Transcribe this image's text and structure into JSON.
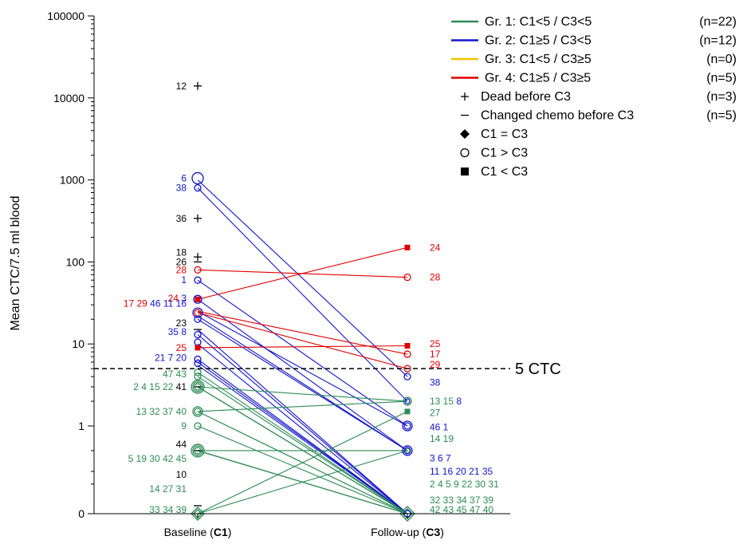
{
  "chart_data": {
    "type": "line",
    "ylabel": "Mean CTC/7.5 ml blood",
    "yscale": "log (0 at bottom)",
    "y_ticks": [
      "100000",
      "10000",
      "1000",
      "100",
      "10",
      "1",
      "0"
    ],
    "x_categories": [
      {
        "prefix": "Baseline (",
        "bold": "C1",
        "suffix": ")"
      },
      {
        "prefix": "Follow-up (",
        "bold": "C3",
        "suffix": ")"
      }
    ],
    "threshold": {
      "value": 5,
      "label": "5 CTC"
    },
    "colors": {
      "green": "#2e8b57",
      "blue": "#1414cc",
      "yellow": "#f2c200",
      "red": "#e00000",
      "black": "#000000"
    },
    "legend": [
      {
        "kind": "line",
        "color": "green",
        "label": "Gr. 1: C1<5 / C3<5",
        "count": "(n=22)"
      },
      {
        "kind": "line",
        "color": "blue",
        "label": "Gr. 2: C1≥5 / C3<5",
        "count": "(n=12)"
      },
      {
        "kind": "line",
        "color": "yellow",
        "label": "Gr. 3: C1<5 / C3≥5",
        "count": "(n=0)"
      },
      {
        "kind": "line",
        "color": "red",
        "label": "Gr. 4: C1≥5 / C3≥5",
        "count": "(n=5)"
      },
      {
        "kind": "plus",
        "label": "Dead before C3",
        "count": "(n=3)"
      },
      {
        "kind": "dash",
        "label": "Changed chemo before C3",
        "count": "(n=5)"
      },
      {
        "kind": "diamond",
        "label": "C1 = C3",
        "count": ""
      },
      {
        "kind": "circle",
        "label": "C1 > C3",
        "count": ""
      },
      {
        "kind": "square",
        "label": "C1 < C3",
        "count": ""
      }
    ],
    "segments": [
      {
        "color": "blue",
        "y1": 1000,
        "y2": 4
      },
      {
        "color": "blue",
        "y1": 800,
        "y2": 2
      },
      {
        "color": "blue",
        "y1": 60,
        "y2": 1
      },
      {
        "color": "blue",
        "y1": 35,
        "y2": 0.5
      },
      {
        "color": "blue",
        "y1": 25,
        "y2": 1
      },
      {
        "color": "blue",
        "y1": 22,
        "y2": 0.5
      },
      {
        "color": "blue",
        "y1": 20,
        "y2": 0.5
      },
      {
        "color": "blue",
        "y1": 15,
        "y2": 0
      },
      {
        "color": "blue",
        "y1": 13,
        "y2": 0
      },
      {
        "color": "blue",
        "y1": 10,
        "y2": 0
      },
      {
        "color": "blue",
        "y1": 6.5,
        "y2": 0
      },
      {
        "color": "blue",
        "y1": 6,
        "y2": 0
      },
      {
        "color": "blue",
        "y1": 5.5,
        "y2": 0
      },
      {
        "color": "red",
        "y1": 80,
        "y2": 65
      },
      {
        "color": "red",
        "y1": 35,
        "y2": 150
      },
      {
        "color": "red",
        "y1": 25,
        "y2": 7.5
      },
      {
        "color": "red",
        "y1": 24,
        "y2": 5
      },
      {
        "color": "red",
        "y1": 9,
        "y2": 9.5
      },
      {
        "color": "green",
        "y1": 4.5,
        "y2": 0
      },
      {
        "color": "green",
        "y1": 4,
        "y2": 0
      },
      {
        "color": "green",
        "y1": 3,
        "y2": 2
      },
      {
        "color": "green",
        "y1": 3,
        "y2": 0
      },
      {
        "color": "green",
        "y1": 3,
        "y2": 0
      },
      {
        "color": "green",
        "y1": 3,
        "y2": 0
      },
      {
        "color": "green",
        "y1": 1.5,
        "y2": 2
      },
      {
        "color": "green",
        "y1": 1.5,
        "y2": 0
      },
      {
        "color": "green",
        "y1": 1.5,
        "y2": 0
      },
      {
        "color": "green",
        "y1": 1,
        "y2": 0
      },
      {
        "color": "green",
        "y1": 0.5,
        "y2": 0.5
      },
      {
        "color": "green",
        "y1": 0.5,
        "y2": 0
      },
      {
        "color": "green",
        "y1": 0.5,
        "y2": 0
      },
      {
        "color": "green",
        "y1": 0.5,
        "y2": 0
      },
      {
        "color": "green",
        "y1": 0,
        "y2": 1.5
      },
      {
        "color": "green",
        "y1": 0,
        "y2": 0.5
      },
      {
        "color": "green",
        "y1": 0,
        "y2": 0
      }
    ],
    "markers": [
      {
        "side": "c1",
        "shape": "plus",
        "color": "black",
        "y": 14000
      },
      {
        "side": "c1",
        "shape": "plus",
        "color": "black",
        "y": 340
      },
      {
        "side": "c1",
        "shape": "plus",
        "color": "black",
        "y": 115
      },
      {
        "side": "c1",
        "shape": "dash",
        "color": "black",
        "y": 100
      },
      {
        "side": "c1",
        "shape": "dash",
        "color": "black",
        "y": 15
      },
      {
        "side": "c1",
        "shape": "dash",
        "color": "black",
        "y": 3
      },
      {
        "side": "c1",
        "shape": "dash",
        "color": "black",
        "y": 0.5
      },
      {
        "side": "c1",
        "shape": "dash",
        "color": "black",
        "y": 0.1
      },
      {
        "side": "c1",
        "shape": "circle",
        "color": "blue",
        "y": 1050,
        "r": 7
      },
      {
        "side": "c1",
        "shape": "circle",
        "color": "blue",
        "y": 800,
        "r": 4
      },
      {
        "side": "c1",
        "shape": "circle",
        "color": "red",
        "y": 80,
        "r": 4
      },
      {
        "side": "c1",
        "shape": "circle",
        "color": "blue",
        "y": 60,
        "r": 4
      },
      {
        "side": "c1",
        "shape": "square",
        "color": "red",
        "y": 35
      },
      {
        "side": "c1",
        "shape": "circle",
        "color": "blue",
        "y": 35,
        "r": 5
      },
      {
        "side": "c1",
        "shape": "circle",
        "color": "blue",
        "y": 24,
        "r": 6
      },
      {
        "side": "c1",
        "shape": "circle",
        "color": "red",
        "y": 24,
        "r": 4
      },
      {
        "side": "c1",
        "shape": "circle",
        "color": "blue",
        "y": 20,
        "r": 4
      },
      {
        "side": "c1",
        "shape": "circle",
        "color": "blue",
        "y": 13,
        "r": 4
      },
      {
        "side": "c1",
        "shape": "circle",
        "color": "blue",
        "y": 10.5,
        "r": 4
      },
      {
        "side": "c1",
        "shape": "square",
        "color": "red",
        "y": 9
      },
      {
        "side": "c1",
        "shape": "circle",
        "color": "blue",
        "y": 6.5,
        "r": 4
      },
      {
        "side": "c1",
        "shape": "circle",
        "color": "blue",
        "y": 5.8,
        "r": 4
      },
      {
        "side": "c1",
        "shape": "circle",
        "color": "green",
        "y": 4.5,
        "r": 4
      },
      {
        "side": "c1",
        "shape": "circle",
        "color": "green",
        "y": 4,
        "r": 4
      },
      {
        "side": "c1",
        "shape": "circle",
        "color": "green",
        "y": 3,
        "r": 4
      },
      {
        "side": "c1",
        "shape": "circle",
        "color": "green",
        "y": 3,
        "r": 6
      },
      {
        "side": "c1",
        "shape": "circle",
        "color": "green",
        "y": 3,
        "r": 8
      },
      {
        "side": "c1",
        "shape": "circle",
        "color": "green",
        "y": 1.5,
        "r": 4
      },
      {
        "side": "c1",
        "shape": "circle",
        "color": "green",
        "y": 1.5,
        "r": 6
      },
      {
        "side": "c1",
        "shape": "circle",
        "color": "green",
        "y": 1,
        "r": 4
      },
      {
        "side": "c1",
        "shape": "circle",
        "color": "green",
        "y": 0.5,
        "r": 4
      },
      {
        "side": "c1",
        "shape": "circle",
        "color": "green",
        "y": 0.5,
        "r": 6
      },
      {
        "side": "c1",
        "shape": "circle",
        "color": "green",
        "y": 0.5,
        "r": 8
      },
      {
        "side": "c1",
        "shape": "diamond",
        "color": "green",
        "y": 0,
        "r": 5
      },
      {
        "side": "c1",
        "shape": "diamond",
        "color": "green",
        "y": 0,
        "r": 8
      },
      {
        "side": "c3",
        "shape": "square",
        "color": "red",
        "y": 150
      },
      {
        "side": "c3",
        "shape": "circle",
        "color": "red",
        "y": 65,
        "r": 4
      },
      {
        "side": "c3",
        "shape": "square",
        "color": "red",
        "y": 9.5
      },
      {
        "side": "c3",
        "shape": "circle",
        "color": "red",
        "y": 7.5,
        "r": 4
      },
      {
        "side": "c3",
        "shape": "circle",
        "color": "red",
        "y": 5,
        "r": 4
      },
      {
        "side": "c3",
        "shape": "circle",
        "color": "blue",
        "y": 4,
        "r": 4
      },
      {
        "side": "c3",
        "shape": "circle",
        "color": "green",
        "y": 2,
        "r": 5
      },
      {
        "side": "c3",
        "shape": "circle",
        "color": "blue",
        "y": 2,
        "r": 3
      },
      {
        "side": "c3",
        "shape": "square",
        "color": "green",
        "y": 1.5
      },
      {
        "side": "c3",
        "shape": "circle",
        "color": "blue",
        "y": 1,
        "r": 4
      },
      {
        "side": "c3",
        "shape": "circle",
        "color": "blue",
        "y": 1,
        "r": 6
      },
      {
        "side": "c3",
        "shape": "circle",
        "color": "blue",
        "y": 0.5,
        "r": 4
      },
      {
        "side": "c3",
        "shape": "circle",
        "color": "blue",
        "y": 0.5,
        "r": 6
      },
      {
        "side": "c3",
        "shape": "circle",
        "color": "green",
        "y": 0.5,
        "r": 3
      },
      {
        "side": "c3",
        "shape": "diamond",
        "color": "green",
        "y": 0,
        "r": 6
      },
      {
        "side": "c3",
        "shape": "diamond",
        "color": "green",
        "y": 0,
        "r": 9
      },
      {
        "side": "c3",
        "shape": "circle",
        "color": "blue",
        "y": 0,
        "r": 4
      }
    ],
    "c1_labels": [
      {
        "y": 14000,
        "color": "black",
        "parts": [
          "12"
        ]
      },
      {
        "y": 1050,
        "color": "blue",
        "parts": [
          "6"
        ]
      },
      {
        "y": 800,
        "color": "blue",
        "parts": [
          "38"
        ]
      },
      {
        "y": 340,
        "color": "black",
        "parts": [
          "36"
        ]
      },
      {
        "y": 130,
        "color": "black",
        "parts": [
          "18"
        ]
      },
      {
        "y": 100,
        "color": "black",
        "parts": [
          "26"
        ]
      },
      {
        "y": 80,
        "color": "red",
        "parts": [
          "28"
        ]
      },
      {
        "y": 60,
        "color": "blue",
        "parts": [
          "1"
        ]
      },
      {
        "y": 36,
        "color": "red",
        "parts": [
          "24"
        ],
        "extra": [
          {
            "color": "blue",
            "text": "3"
          }
        ]
      },
      {
        "y": 31,
        "color": "red",
        "parts": [
          "17",
          "29"
        ],
        "extra": [
          {
            "color": "blue",
            "text": "46"
          },
          {
            "color": "blue",
            "text": "11"
          },
          {
            "color": "blue",
            "text": "16"
          }
        ],
        "row": "wide"
      },
      {
        "y": 18,
        "color": "black",
        "parts": [
          "23"
        ]
      },
      {
        "y": 14,
        "color": "blue",
        "parts": [
          "35",
          "8"
        ]
      },
      {
        "y": 9,
        "color": "red",
        "parts": [
          "25"
        ]
      },
      {
        "y": 6.8,
        "color": "blue",
        "parts": [
          "21",
          "7",
          "20"
        ]
      },
      {
        "y": 4.3,
        "color": "green",
        "parts": [
          "47",
          "43"
        ]
      },
      {
        "y": 3,
        "color": "green",
        "parts": [
          "2 4 15 22"
        ],
        "extra": [
          {
            "color": "black",
            "text": "41"
          }
        ]
      },
      {
        "y": 1.5,
        "color": "green",
        "parts": [
          "13 32 37 40"
        ]
      },
      {
        "y": 1,
        "color": "green",
        "parts": [
          "9"
        ]
      },
      {
        "y": 0.6,
        "color": "black",
        "parts": [
          "44"
        ]
      },
      {
        "y": 0.45,
        "color": "green",
        "parts": [
          "5 19 30 42 45"
        ]
      },
      {
        "y": 0.27,
        "color": "black",
        "parts": [
          "10"
        ]
      },
      {
        "y": 0.17,
        "color": "green",
        "parts": [
          "14 27 31"
        ]
      },
      {
        "y": 0.05,
        "color": "green",
        "parts": [
          "33 34 39"
        ]
      }
    ],
    "c3_labels": [
      {
        "y": 150,
        "color": "red",
        "text": "24"
      },
      {
        "y": 65,
        "color": "red",
        "text": "28"
      },
      {
        "y": 10,
        "color": "red",
        "text": "25"
      },
      {
        "y": 7.5,
        "color": "red",
        "text": "17"
      },
      {
        "y": 5.6,
        "color": "red",
        "text": "29"
      },
      {
        "y": 3.4,
        "color": "blue",
        "text": "38"
      },
      {
        "y": 2,
        "color": "green",
        "text": "13 15",
        "extra": [
          {
            "color": "blue",
            "text": "8"
          }
        ]
      },
      {
        "y": 1.45,
        "color": "green",
        "text": "27"
      },
      {
        "y": 0.97,
        "color": "blue",
        "text": "46   1"
      },
      {
        "y": 0.7,
        "color": "green",
        "text": "14 19"
      },
      {
        "y": 0.46,
        "color": "blue",
        "text": "3 6 7"
      },
      {
        "y": 0.3,
        "color": "blue",
        "text": "11 16 20 21 35"
      },
      {
        "y": 0.2,
        "color": "green",
        "text": "2 4 5 9 22 30 31"
      },
      {
        "y": 0.12,
        "color": "green",
        "text": "32 33 34 37 39"
      },
      {
        "y": 0.05,
        "color": "green",
        "text": "42 43 45 47 40"
      }
    ]
  }
}
